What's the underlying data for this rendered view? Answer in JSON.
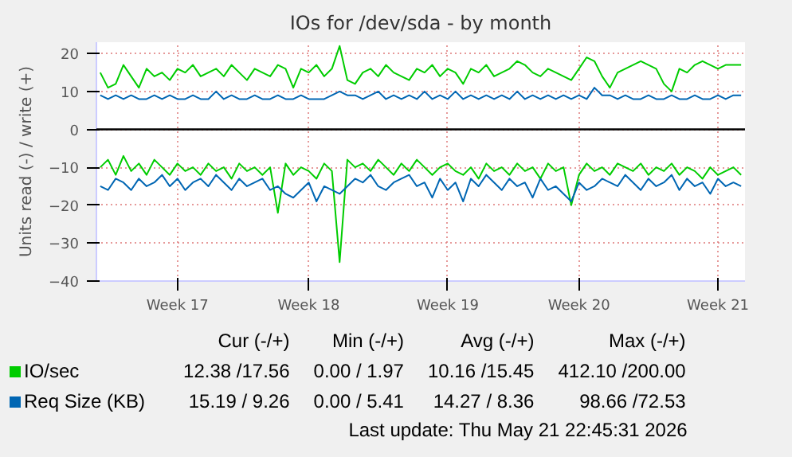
{
  "chart_data": {
    "type": "line",
    "title": "IOs for /dev/sda - by month",
    "ylabel": "Units read (-) / write (+)",
    "categories": [
      null,
      null,
      null,
      null,
      null,
      null,
      null,
      null,
      null,
      null,
      "Week 17",
      null,
      null,
      null,
      null,
      null,
      null,
      null,
      null,
      null,
      null,
      null,
      null,
      null,
      null,
      null,
      null,
      "Week 18",
      null,
      null,
      null,
      null,
      null,
      null,
      null,
      null,
      null,
      null,
      null,
      null,
      null,
      null,
      null,
      null,
      null,
      "Week 19",
      null,
      null,
      null,
      null,
      null,
      null,
      null,
      null,
      null,
      null,
      null,
      null,
      null,
      null,
      null,
      null,
      "Week 20",
      null,
      null,
      null,
      null,
      null,
      null,
      null,
      null,
      null,
      null,
      null,
      null,
      null,
      null,
      null,
      null,
      null,
      "Week 21",
      null,
      null,
      null
    ],
    "ylim": [
      -40,
      23
    ],
    "yticks": [
      -40,
      -30,
      -20,
      -10,
      0,
      10,
      20
    ],
    "grid": true,
    "legend": "bottom",
    "ref_lines": [
      {
        "axis": "y",
        "value": 0,
        "color": "#000000"
      }
    ],
    "series": [
      {
        "name": "IO/sec",
        "color": "#00cc00",
        "values": [
          15,
          11,
          12,
          17,
          14,
          11,
          16,
          14,
          15,
          13,
          16,
          15,
          17,
          14,
          15,
          16,
          14,
          17,
          15,
          13,
          16,
          15,
          14,
          17,
          16,
          11,
          16,
          15,
          17,
          14,
          16,
          22,
          13,
          12,
          15,
          16,
          14,
          17,
          15,
          14,
          13,
          16,
          15,
          17,
          14,
          16,
          15,
          12,
          16,
          15,
          17,
          14,
          15,
          16,
          18,
          17,
          15,
          14,
          16,
          15,
          14,
          13,
          16,
          19,
          18,
          14,
          11,
          15,
          16,
          17,
          18,
          17,
          16,
          12,
          10,
          16,
          15,
          17,
          18,
          17,
          16,
          17,
          17,
          17
        ]
      },
      {
        "color": "#00cc00",
        "values": [
          -10,
          -8,
          -12,
          -7,
          -11,
          -9,
          -12,
          -8,
          -10,
          -12,
          -9,
          -11,
          -10,
          -12,
          -9,
          -11,
          -10,
          -13,
          -9,
          -11,
          -10,
          -12,
          -10,
          -22,
          -9,
          -12,
          -10,
          -11,
          -13,
          -9,
          -11,
          -35,
          -8,
          -10,
          -9,
          -11,
          -8,
          -10,
          -12,
          -9,
          -11,
          -8,
          -10,
          -12,
          -10,
          -9,
          -11,
          -12,
          -10,
          -13,
          -9,
          -11,
          -10,
          -12,
          -9,
          -11,
          -10,
          -13,
          -9,
          -11,
          -10,
          -20,
          -12,
          -9,
          -11,
          -10,
          -12,
          -9,
          -10,
          -11,
          -9,
          -12,
          -10,
          -11,
          -9,
          -12,
          -10,
          -11,
          -13,
          -10,
          -12,
          -11,
          -10,
          -12
        ]
      },
      {
        "name": "Req Size (KB)",
        "color": "#0066b3",
        "values": [
          9,
          8,
          9,
          8,
          9,
          8,
          8,
          9,
          8,
          9,
          8,
          8,
          9,
          8,
          8,
          10,
          8,
          9,
          8,
          8,
          9,
          8,
          8,
          9,
          8,
          8,
          9,
          8,
          8,
          8,
          9,
          10,
          9,
          9,
          8,
          9,
          10,
          8,
          9,
          8,
          9,
          8,
          10,
          8,
          9,
          8,
          10,
          8,
          9,
          8,
          9,
          8,
          9,
          8,
          10,
          8,
          9,
          8,
          9,
          8,
          9,
          8,
          9,
          8,
          11,
          9,
          9,
          8,
          9,
          8,
          8,
          9,
          8,
          8,
          9,
          8,
          8,
          9,
          8,
          8,
          9,
          8,
          9,
          9
        ]
      },
      {
        "color": "#0066b3",
        "values": [
          -15,
          -16,
          -13,
          -14,
          -16,
          -13,
          -15,
          -14,
          -12,
          -15,
          -13,
          -16,
          -14,
          -13,
          -15,
          -12,
          -14,
          -16,
          -13,
          -15,
          -14,
          -13,
          -16,
          -15,
          -17,
          -18,
          -16,
          -14,
          -19,
          -15,
          -16,
          -17,
          -15,
          -13,
          -14,
          -12,
          -15,
          -16,
          -14,
          -13,
          -12,
          -15,
          -14,
          -18,
          -13,
          -16,
          -14,
          -19,
          -13,
          -15,
          -12,
          -14,
          -16,
          -13,
          -15,
          -14,
          -18,
          -13,
          -16,
          -15,
          -17,
          -19,
          -14,
          -16,
          -15,
          -13,
          -14,
          -15,
          -12,
          -14,
          -16,
          -13,
          -15,
          -14,
          -12,
          -16,
          -13,
          -15,
          -14,
          -17,
          -13,
          -15,
          -14,
          -15
        ]
      }
    ],
    "annotations": [
      "Cur (-/+)",
      "Min (-/+)",
      "Avg (-/+)",
      "Max (-/+)",
      "12.38 /17.56",
      "0.00 / 1.97",
      "10.16 /15.45",
      "412.10 /200.00",
      "15.19 / 9.26",
      "0.00 / 5.41",
      "14.27 / 8.36",
      "98.66 /72.53",
      "Last update: Thu May 21 22:45:31 2026"
    ]
  }
}
